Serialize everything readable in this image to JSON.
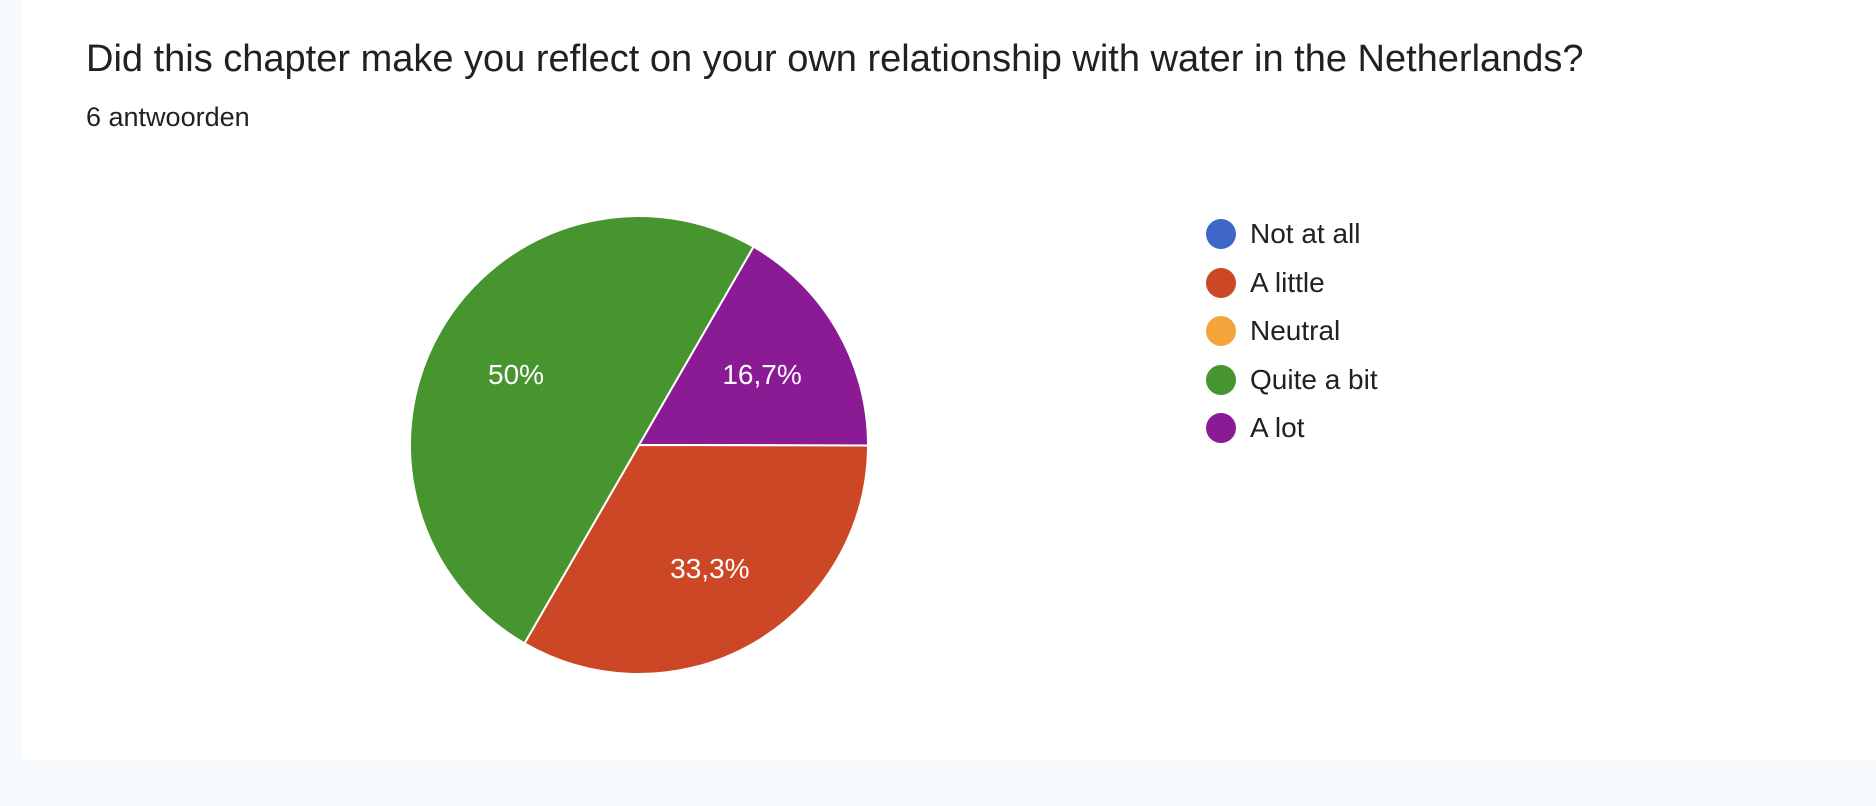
{
  "question": {
    "title": "Did this chapter make you reflect on your own relationship with water in the Netherlands?",
    "response_count": "6 antwoorden"
  },
  "chart_data": {
    "type": "pie",
    "categories": [
      "Not at all",
      "A little",
      "Neutral",
      "Quite a bit",
      "A lot"
    ],
    "values": [
      0,
      33.3,
      0,
      50,
      16.7
    ],
    "labels": [
      "",
      "33,3%",
      "",
      "50%",
      "16,7%"
    ],
    "colors": [
      "#3f67c9",
      "#cc4725",
      "#f3a43b",
      "#46952f",
      "#8b1a95"
    ],
    "slice_border_color": "#ffffff",
    "legend_position": "right",
    "title": "Did this chapter make you reflect on your own relationship with water in the Netherlands?"
  }
}
